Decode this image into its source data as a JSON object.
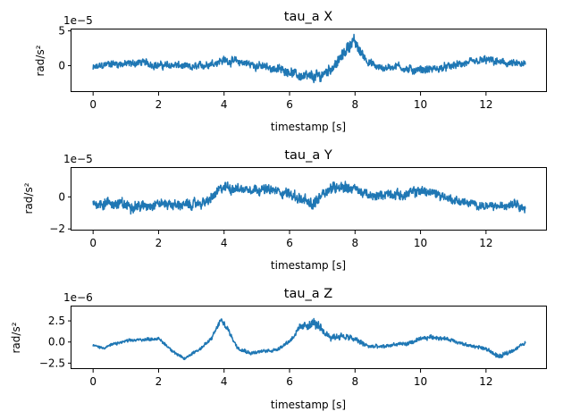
{
  "chart_data": [
    {
      "type": "line",
      "title": "tau_a X",
      "xlabel": "timestamp [s]",
      "ylabel": "rad/s²",
      "offset_text": "1e−5",
      "xlim": [
        -0.66,
        13.86
      ],
      "ylim": [
        -3.8,
        5.2
      ],
      "xticks": [
        0,
        2,
        4,
        6,
        8,
        10,
        12
      ],
      "yticks": [
        0,
        5
      ],
      "ytick_labels": [
        "0",
        "5"
      ],
      "color": "#1f77b4",
      "series": [
        {
          "x": [
            0,
            0.5,
            1,
            1.5,
            2,
            2.5,
            3,
            3.5,
            4,
            4.5,
            5,
            5.5,
            6,
            6.3,
            6.6,
            6.9,
            7.2,
            7.5,
            7.8,
            7.95,
            8.1,
            8.4,
            8.7,
            9,
            9.3,
            9.6,
            10,
            10.5,
            11,
            11.5,
            12,
            12.5,
            13.2
          ],
          "y": [
            -0.4,
            0.3,
            0.2,
            0.5,
            0.0,
            0.1,
            -0.3,
            0.2,
            0.8,
            0.5,
            0.0,
            -0.4,
            -0.8,
            -1.5,
            -1.7,
            -1.6,
            -0.6,
            0.6,
            2.8,
            3.6,
            2.4,
            0.6,
            -0.3,
            -0.3,
            0.0,
            -0.6,
            -0.6,
            -0.5,
            0.0,
            0.4,
            0.8,
            0.4,
            0.1
          ],
          "amp": [
            0.9,
            0.9,
            0.9,
            0.9,
            0.9,
            0.9,
            0.9,
            0.9,
            1.0,
            1.0,
            1.0,
            1.0,
            1.0,
            1.1,
            1.4,
            1.6,
            1.2,
            1.3,
            1.5,
            1.5,
            1.2,
            1.0,
            0.9,
            0.9,
            0.9,
            1.0,
            1.0,
            0.9,
            0.9,
            0.9,
            1.0,
            0.9,
            0.9
          ]
        }
      ]
    },
    {
      "type": "line",
      "title": "tau_a Y",
      "xlabel": "timestamp [s]",
      "ylabel": "rad/s²",
      "offset_text": "1e−5",
      "xlim": [
        -0.66,
        13.86
      ],
      "ylim": [
        -2.1,
        1.8
      ],
      "xticks": [
        0,
        2,
        4,
        6,
        8,
        10,
        12
      ],
      "yticks": [
        -2,
        0
      ],
      "ytick_labels": [
        "−2",
        "0"
      ],
      "color": "#1f77b4",
      "series": [
        {
          "x": [
            0,
            0.5,
            1,
            1.5,
            2,
            2.5,
            3,
            3.5,
            3.8,
            4,
            4.5,
            5,
            5.5,
            6,
            6.5,
            6.7,
            7,
            7.5,
            8,
            8.5,
            9,
            9.5,
            10,
            10.5,
            11,
            11.5,
            12,
            12.5,
            12.9,
            13.2
          ],
          "y": [
            -0.4,
            -0.4,
            -0.5,
            -0.6,
            -0.4,
            -0.5,
            -0.5,
            -0.3,
            0.3,
            0.6,
            0.5,
            0.5,
            0.4,
            0.2,
            -0.3,
            -0.6,
            0.3,
            0.7,
            0.5,
            0.0,
            0.2,
            0.1,
            0.4,
            0.2,
            -0.2,
            -0.4,
            -0.6,
            -0.6,
            -0.3,
            -0.8
          ],
          "amp": [
            0.55,
            0.6,
            0.6,
            0.55,
            0.5,
            0.5,
            0.5,
            0.5,
            0.55,
            0.6,
            0.5,
            0.5,
            0.5,
            0.55,
            0.6,
            0.75,
            0.6,
            0.65,
            0.55,
            0.45,
            0.5,
            0.5,
            0.55,
            0.5,
            0.45,
            0.4,
            0.4,
            0.4,
            0.5,
            0.4
          ]
        }
      ]
    },
    {
      "type": "line",
      "title": "tau_a Z",
      "xlabel": "timestamp [s]",
      "ylabel": "rad/s²",
      "offset_text": "1e−6",
      "xlim": [
        -0.66,
        13.86
      ],
      "ylim": [
        -3.2,
        4.2
      ],
      "xticks": [
        0,
        2,
        4,
        6,
        8,
        10,
        12
      ],
      "yticks": [
        -2.5,
        0,
        2.5
      ],
      "ytick_labels": [
        "−2.5",
        "0.0",
        "2.5"
      ],
      "color": "#1f77b4",
      "series": [
        {
          "x": [
            0,
            0.3,
            0.6,
            1,
            1.5,
            2,
            2.3,
            2.6,
            2.8,
            3,
            3.3,
            3.6,
            3.9,
            4.1,
            4.4,
            4.8,
            5.2,
            5.6,
            6,
            6.3,
            6.6,
            6.8,
            7,
            7.3,
            7.6,
            8,
            8.4,
            8.8,
            9.2,
            9.6,
            10,
            10.3,
            10.6,
            11,
            11.4,
            11.8,
            12.1,
            12.4,
            12.6,
            12.9,
            13.2
          ],
          "y": [
            -0.4,
            -0.7,
            -0.3,
            0.1,
            0.3,
            0.4,
            -0.6,
            -1.6,
            -2.0,
            -1.4,
            -0.7,
            0.3,
            2.6,
            1.6,
            -0.6,
            -1.3,
            -1.1,
            -0.9,
            0.1,
            1.6,
            2.1,
            2.2,
            1.2,
            0.6,
            0.7,
            0.3,
            -0.5,
            -0.6,
            -0.3,
            -0.2,
            0.3,
            0.6,
            0.5,
            0.2,
            -0.4,
            -0.6,
            -1.0,
            -1.8,
            -1.4,
            -0.8,
            -0.1
          ],
          "amp": [
            0.25,
            0.25,
            0.3,
            0.3,
            0.3,
            0.3,
            0.3,
            0.3,
            0.3,
            0.3,
            0.35,
            0.4,
            0.6,
            0.5,
            0.4,
            0.35,
            0.35,
            0.35,
            0.4,
            0.6,
            0.9,
            1.1,
            0.8,
            0.7,
            0.7,
            0.6,
            0.45,
            0.4,
            0.4,
            0.4,
            0.4,
            0.45,
            0.4,
            0.35,
            0.35,
            0.35,
            0.4,
            0.5,
            0.45,
            0.35,
            0.3
          ]
        }
      ]
    }
  ]
}
